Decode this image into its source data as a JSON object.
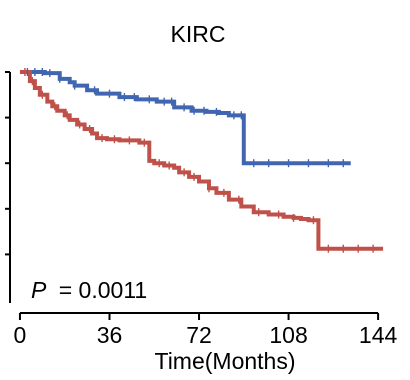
{
  "chart_data": {
    "type": "line",
    "title": "KIRC",
    "xlabel": "Time(Months)",
    "ylabel": "",
    "x_ticks": [
      0,
      36,
      72,
      108,
      144
    ],
    "x_tick_labels": [
      "0",
      "36",
      "72",
      "108",
      "144"
    ],
    "xlim": [
      -4,
      152
    ],
    "ylim": [
      0,
      1
    ],
    "y_ticks": [
      0.2,
      0.4,
      0.6,
      0.8,
      1.0
    ],
    "y_tick_labels_visible": false,
    "legend": "none",
    "grid": false,
    "annotation": {
      "p_symbol": "P",
      "p_text": "= 0.0011"
    },
    "series": [
      {
        "color": "#4166b1",
        "x": [
          0,
          10,
          16,
          20,
          22,
          27,
          31,
          40,
          47,
          55,
          62,
          69,
          75,
          80,
          84,
          90,
          98,
          106,
          114,
          120,
          126,
          133
        ],
        "y": [
          1.0,
          0.995,
          0.97,
          0.955,
          0.94,
          0.92,
          0.905,
          0.89,
          0.88,
          0.87,
          0.845,
          0.83,
          0.825,
          0.82,
          0.81,
          0.6,
          0.6,
          0.6,
          0.6,
          0.6,
          0.6,
          0.6
        ],
        "censor_x": [
          3,
          6,
          9,
          12,
          16,
          22,
          30,
          36,
          42,
          46,
          52,
          58,
          61,
          66,
          70,
          74,
          79,
          86,
          89,
          94,
          100,
          108,
          116,
          124,
          130
        ]
      },
      {
        "color": "#c0504a",
        "x": [
          0,
          4,
          6,
          8,
          11,
          13,
          15,
          18,
          20,
          23,
          26,
          29,
          31,
          35,
          40,
          48,
          52,
          54,
          58,
          62,
          64,
          68,
          72,
          76,
          79,
          84,
          89,
          94,
          100,
          106,
          110,
          113,
          116,
          120,
          125,
          130,
          136,
          141,
          146
        ],
        "y": [
          1.0,
          0.96,
          0.93,
          0.9,
          0.87,
          0.85,
          0.83,
          0.81,
          0.79,
          0.77,
          0.75,
          0.73,
          0.71,
          0.705,
          0.7,
          0.69,
          0.61,
          0.6,
          0.59,
          0.58,
          0.56,
          0.54,
          0.52,
          0.49,
          0.47,
          0.44,
          0.41,
          0.385,
          0.375,
          0.365,
          0.36,
          0.355,
          0.35,
          0.225,
          0.225,
          0.225,
          0.225,
          0.225,
          0.225
        ],
        "censor_x": [
          2,
          5,
          9,
          14,
          19,
          24,
          28,
          33,
          38,
          44,
          50,
          56,
          60,
          66,
          70,
          76,
          82,
          88,
          96,
          104,
          110,
          118,
          124,
          130,
          136,
          142
        ]
      }
    ]
  }
}
